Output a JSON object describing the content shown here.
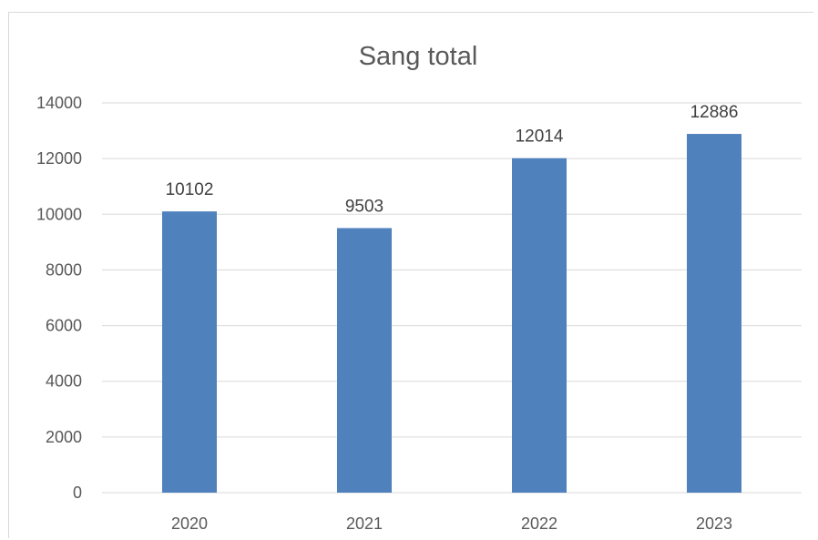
{
  "chart_data": {
    "type": "bar",
    "title": "Sang total",
    "xlabel": "",
    "ylabel": "",
    "categories": [
      "2020",
      "2021",
      "2022",
      "2023"
    ],
    "series": [
      {
        "values": [
          10102,
          9503,
          12014,
          12886
        ],
        "color": "#4f81bd"
      }
    ],
    "ylim": [
      0,
      14000
    ],
    "yticks": [
      0,
      2000,
      4000,
      6000,
      8000,
      10000,
      12000,
      14000
    ],
    "grid": true,
    "legend": "none",
    "data_labels": true
  }
}
